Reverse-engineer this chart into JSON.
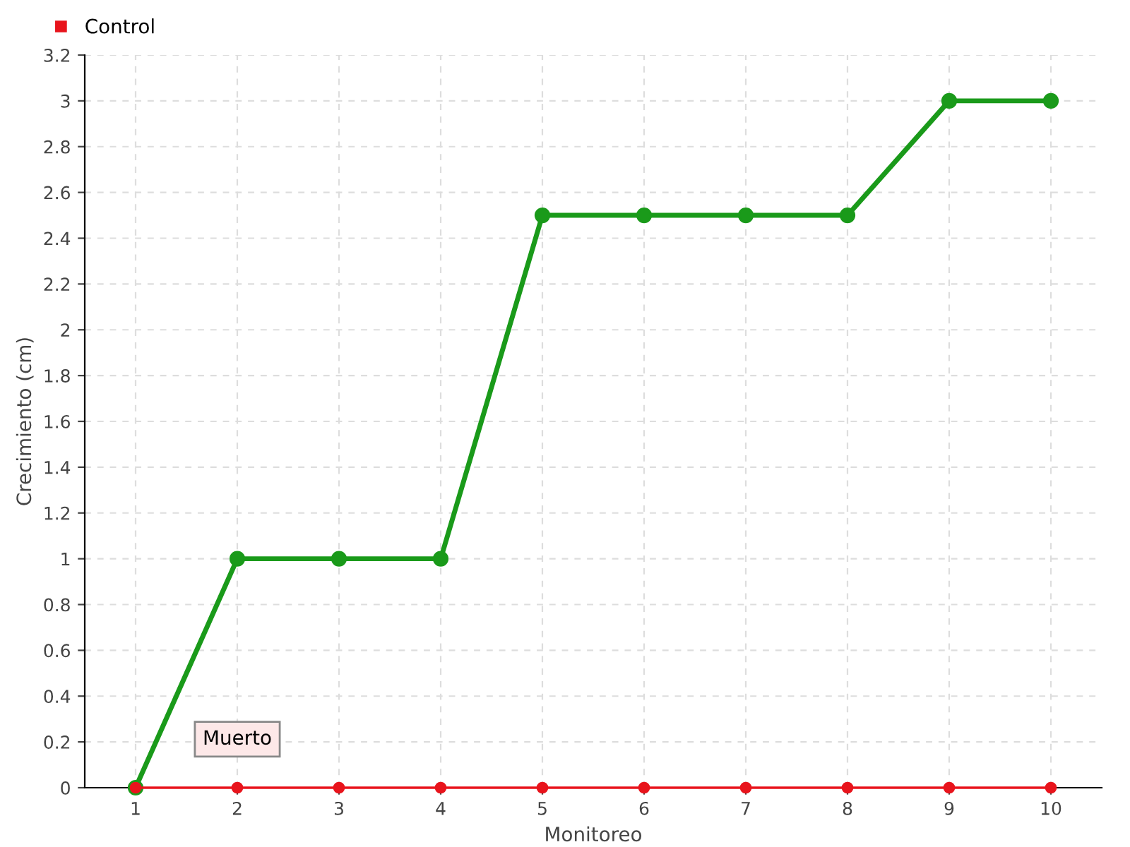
{
  "chart_data": {
    "type": "line",
    "xlabel": "Monitoreo",
    "ylabel": "Crecimiento (cm)",
    "categories": [
      "1",
      "2",
      "3",
      "4",
      "5",
      "6",
      "7",
      "8",
      "9",
      "10"
    ],
    "series": [
      {
        "color": "#1a9a1a",
        "values": [
          0,
          1,
          1,
          1,
          2.5,
          2.5,
          2.5,
          2.5,
          3,
          3
        ]
      },
      {
        "name": "Control",
        "color": "#e8141c",
        "values": [
          0,
          0,
          0,
          0,
          0,
          0,
          0,
          0,
          0,
          0
        ]
      }
    ],
    "ylim": [
      0,
      3.2
    ],
    "yticks": [
      0,
      0.2,
      0.4,
      0.6,
      0.8,
      1,
      1.2,
      1.4,
      1.6,
      1.8,
      2,
      2.2,
      2.4,
      2.6,
      2.8,
      3,
      3.2
    ],
    "grid": true,
    "legend": "top left",
    "marker": "circle",
    "line_style": "solid",
    "annotations": [
      {
        "text": "Muerto",
        "x": "2",
        "y": 0
      }
    ]
  }
}
